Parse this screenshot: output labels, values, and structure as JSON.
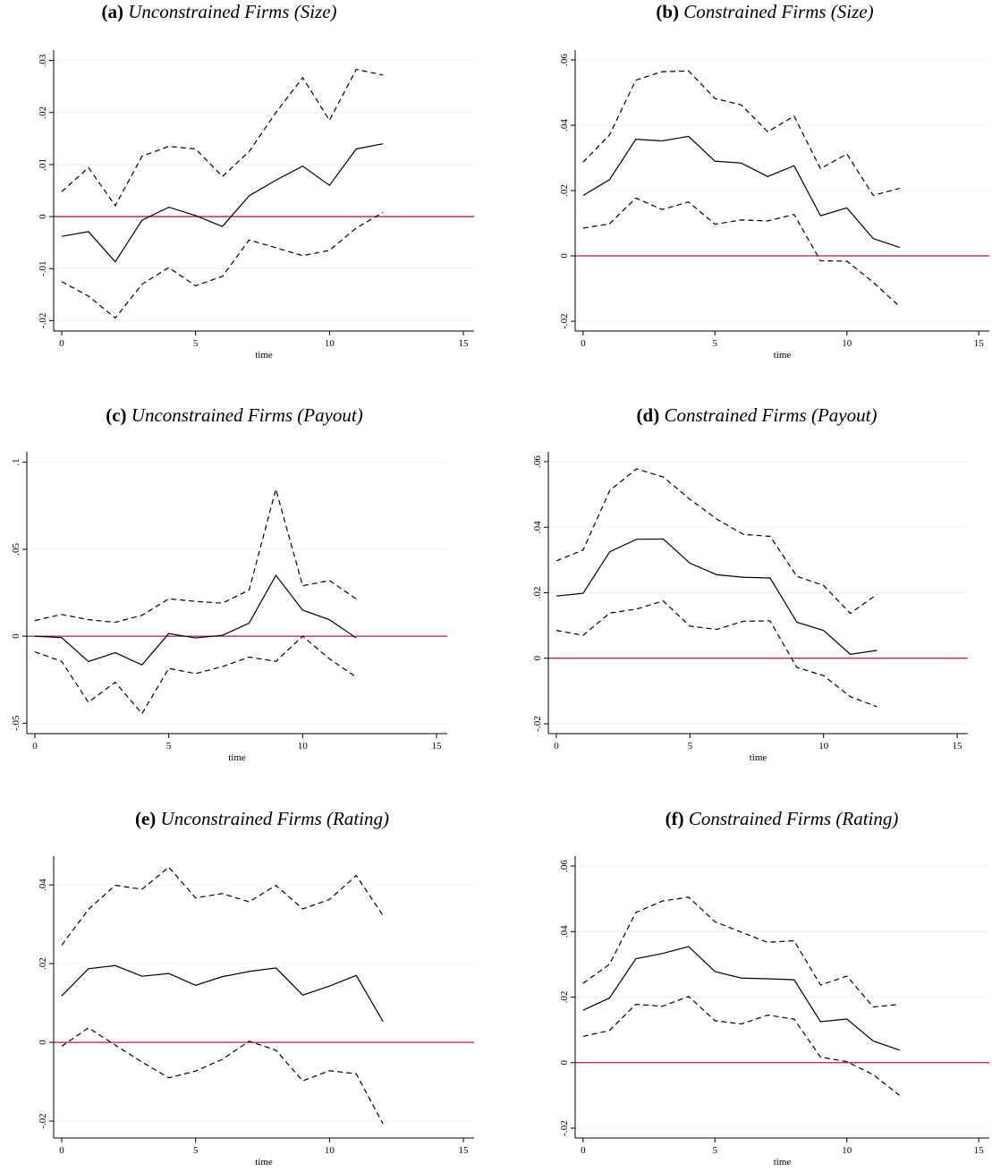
{
  "chart_data": [
    {
      "type": "line",
      "label": "(a)",
      "title": "Unconstrained Firms (Size)",
      "xlabel": "time",
      "x": [
        0,
        1,
        2,
        3,
        4,
        5,
        6,
        7,
        8,
        9,
        10,
        11,
        12
      ],
      "xlim": [
        -0.3,
        15.4
      ],
      "xticks": [
        0,
        5,
        10,
        15
      ],
      "ylim": [
        -0.022,
        0.032
      ],
      "yticks": [
        {
          "value": -0.02,
          "label": "-.02"
        },
        {
          "value": -0.01,
          "label": "-.01"
        },
        0,
        {
          "value": 0.01,
          "label": ".01"
        },
        {
          "value": 0.02,
          "label": ".02"
        },
        {
          "value": 0.03,
          "label": ".03"
        }
      ],
      "grid": true,
      "hline": 0,
      "hline_color": "#b01e3c",
      "series": [
        {
          "color": "#000000",
          "style": "solid",
          "values": [
            -0.0038,
            -0.0029,
            -0.0087,
            -0.0007,
            0.0018,
            0.0002,
            -0.0019,
            0.004,
            0.007,
            0.0097,
            0.006,
            0.013,
            0.014
          ]
        },
        {
          "color": "#000000",
          "style": "dashed",
          "values": [
            0.0048,
            0.0094,
            0.0021,
            0.0116,
            0.0135,
            0.013,
            0.0077,
            0.0125,
            0.02,
            0.0267,
            0.0185,
            0.0283,
            0.0272
          ]
        },
        {
          "color": "#000000",
          "style": "dashed",
          "values": [
            -0.0125,
            -0.0153,
            -0.0195,
            -0.013,
            -0.0098,
            -0.0133,
            -0.0115,
            -0.0045,
            -0.006,
            -0.0075,
            -0.0065,
            -0.0022,
            0.0008
          ]
        }
      ]
    },
    {
      "type": "line",
      "label": "(b)",
      "title": "Constrained Firms (Size)",
      "xlabel": "time",
      "x": [
        0,
        1,
        2,
        3,
        4,
        5,
        6,
        7,
        8,
        9,
        10,
        11,
        12
      ],
      "xlim": [
        -0.3,
        15.4
      ],
      "xticks": [
        0,
        5,
        10,
        15
      ],
      "ylim": [
        -0.023,
        0.063
      ],
      "yticks": [
        {
          "value": -0.02,
          "label": "-.02"
        },
        0,
        {
          "value": 0.02,
          "label": ".02"
        },
        {
          "value": 0.04,
          "label": ".04"
        },
        {
          "value": 0.06,
          "label": ".06"
        }
      ],
      "grid": true,
      "hline": 0,
      "hline_color": "#b01e3c",
      "series": [
        {
          "color": "#000000",
          "style": "solid",
          "values": [
            0.0185,
            0.0233,
            0.0357,
            0.0352,
            0.0366,
            0.029,
            0.0284,
            0.0243,
            0.0276,
            0.0123,
            0.0147,
            0.0053,
            0.0026
          ]
        },
        {
          "color": "#000000",
          "style": "dashed",
          "values": [
            0.0287,
            0.037,
            0.0538,
            0.0564,
            0.0566,
            0.0482,
            0.0462,
            0.038,
            0.0428,
            0.0267,
            0.0312,
            0.0185,
            0.0207
          ]
        },
        {
          "color": "#000000",
          "style": "dashed",
          "values": [
            0.0085,
            0.0098,
            0.0177,
            0.0142,
            0.0165,
            0.0097,
            0.011,
            0.0107,
            0.0127,
            -0.0015,
            -0.0016,
            -0.0081,
            -0.0155
          ]
        }
      ]
    },
    {
      "type": "line",
      "label": "(c)",
      "title": "Unconstrained Firms (Payout)",
      "xlabel": "time",
      "x": [
        0,
        1,
        2,
        3,
        4,
        5,
        6,
        7,
        8,
        9,
        10,
        11,
        12
      ],
      "xlim": [
        -0.3,
        15.4
      ],
      "xticks": [
        0,
        5,
        10,
        15
      ],
      "ylim": [
        -0.056,
        0.106
      ],
      "yticks": [
        {
          "value": -0.05,
          "label": "-.05"
        },
        0,
        {
          "value": 0.05,
          "label": ".05"
        },
        {
          "value": 0.1,
          "label": ".1"
        }
      ],
      "grid": true,
      "hline": 0,
      "hline_color": "#b01e3c",
      "series": [
        {
          "color": "#000000",
          "style": "solid",
          "values": [
            0,
            -0.0008,
            -0.0145,
            -0.0095,
            -0.0165,
            0.0015,
            -0.001,
            0.0005,
            0.0075,
            0.035,
            0.015,
            0.0095,
            -0.001
          ]
        },
        {
          "color": "#000000",
          "style": "dashed",
          "values": [
            0.009,
            0.0125,
            0.0095,
            0.008,
            0.012,
            0.0215,
            0.02,
            0.019,
            0.0265,
            0.0845,
            0.029,
            0.032,
            0.0215
          ]
        },
        {
          "color": "#000000",
          "style": "dashed",
          "values": [
            -0.009,
            -0.0145,
            -0.038,
            -0.0265,
            -0.0445,
            -0.0185,
            -0.0215,
            -0.0175,
            -0.012,
            -0.0145,
            0,
            -0.013,
            -0.0235
          ]
        }
      ]
    },
    {
      "type": "line",
      "label": "(d)",
      "title": "Constrained Firms (Payout)",
      "xlabel": "time",
      "x": [
        0,
        1,
        2,
        3,
        4,
        5,
        6,
        7,
        8,
        9,
        10,
        11,
        12
      ],
      "xlim": [
        -0.3,
        15.4
      ],
      "xticks": [
        0,
        5,
        10,
        15
      ],
      "ylim": [
        -0.023,
        0.063
      ],
      "yticks": [
        {
          "value": -0.02,
          "label": "-.02"
        },
        0,
        {
          "value": 0.02,
          "label": ".02"
        },
        {
          "value": 0.04,
          "label": ".04"
        },
        {
          "value": 0.06,
          "label": ".06"
        }
      ],
      "grid": true,
      "hline": 0,
      "hline_color": "#b01e3c",
      "series": [
        {
          "color": "#000000",
          "style": "solid",
          "values": [
            0.019,
            0.0198,
            0.0325,
            0.0363,
            0.0364,
            0.029,
            0.0255,
            0.0247,
            0.0245,
            0.011,
            0.0085,
            0.0012,
            0.0024
          ]
        },
        {
          "color": "#000000",
          "style": "dashed",
          "values": [
            0.0297,
            0.033,
            0.0512,
            0.0578,
            0.0553,
            0.0485,
            0.0425,
            0.0378,
            0.0372,
            0.025,
            0.0222,
            0.0137,
            0.0195
          ]
        },
        {
          "color": "#000000",
          "style": "dashed",
          "values": [
            0.0085,
            0.007,
            0.0138,
            0.015,
            0.0175,
            0.0098,
            0.0088,
            0.0113,
            0.0114,
            -0.0028,
            -0.0053,
            -0.0117,
            -0.0148
          ]
        }
      ]
    },
    {
      "type": "line",
      "label": "(e)",
      "title": "Unconstrained Firms (Rating)",
      "xlabel": "time",
      "x": [
        0,
        1,
        2,
        3,
        4,
        5,
        6,
        7,
        8,
        9,
        10,
        11,
        12
      ],
      "xlim": [
        -0.3,
        15.4
      ],
      "xticks": [
        0,
        5,
        10,
        15
      ],
      "ylim": [
        -0.0243,
        0.0473
      ],
      "yticks": [
        {
          "value": -0.02,
          "label": "-.02"
        },
        0,
        {
          "value": 0.02,
          "label": ".02"
        },
        {
          "value": 0.04,
          "label": ".04"
        }
      ],
      "grid": true,
      "hline": 0,
      "hline_color": "#b01e3c",
      "series": [
        {
          "color": "#000000",
          "style": "solid",
          "values": [
            0.0118,
            0.0187,
            0.0195,
            0.0168,
            0.0175,
            0.0145,
            0.0167,
            0.018,
            0.0189,
            0.012,
            0.0143,
            0.017,
            0.0053
          ]
        },
        {
          "color": "#000000",
          "style": "dashed",
          "values": [
            0.0247,
            0.0338,
            0.0399,
            0.0389,
            0.0445,
            0.0367,
            0.0378,
            0.0357,
            0.0399,
            0.0339,
            0.0363,
            0.0424,
            0.0322
          ]
        },
        {
          "color": "#000000",
          "style": "dashed",
          "values": [
            -0.001,
            0.0037,
            -0.0007,
            -0.005,
            -0.009,
            -0.0073,
            -0.0043,
            0.0003,
            -0.002,
            -0.0098,
            -0.0072,
            -0.008,
            -0.0207
          ]
        }
      ]
    },
    {
      "type": "line",
      "label": "(f)",
      "title": "Constrained Firms (Rating)",
      "xlabel": "time",
      "x": [
        0,
        1,
        2,
        3,
        4,
        5,
        6,
        7,
        8,
        9,
        10,
        11,
        12
      ],
      "xlim": [
        -0.3,
        15.4
      ],
      "xticks": [
        0,
        5,
        10,
        15
      ],
      "ylim": [
        -0.023,
        0.063
      ],
      "yticks": [
        {
          "value": -0.02,
          "label": "-.02"
        },
        0,
        {
          "value": 0.02,
          "label": ".02"
        },
        {
          "value": 0.04,
          "label": ".04"
        },
        {
          "value": 0.06,
          "label": ".06"
        }
      ],
      "grid": true,
      "hline": 0,
      "hline_color": "#b01e3c",
      "series": [
        {
          "color": "#000000",
          "style": "solid",
          "values": [
            0.016,
            0.0197,
            0.0317,
            0.0333,
            0.0354,
            0.0278,
            0.0258,
            0.0256,
            0.0253,
            0.0125,
            0.0133,
            0.0066,
            0.0038
          ]
        },
        {
          "color": "#000000",
          "style": "dashed",
          "values": [
            0.0242,
            0.03,
            0.0458,
            0.0493,
            0.0505,
            0.043,
            0.0398,
            0.0367,
            0.0372,
            0.0237,
            0.0264,
            0.017,
            0.0178
          ]
        },
        {
          "color": "#000000",
          "style": "dashed",
          "values": [
            0.008,
            0.0098,
            0.0178,
            0.0172,
            0.0202,
            0.0128,
            0.0118,
            0.0145,
            0.0133,
            0.0017,
            0.0003,
            -0.0037,
            -0.01
          ]
        }
      ]
    }
  ]
}
